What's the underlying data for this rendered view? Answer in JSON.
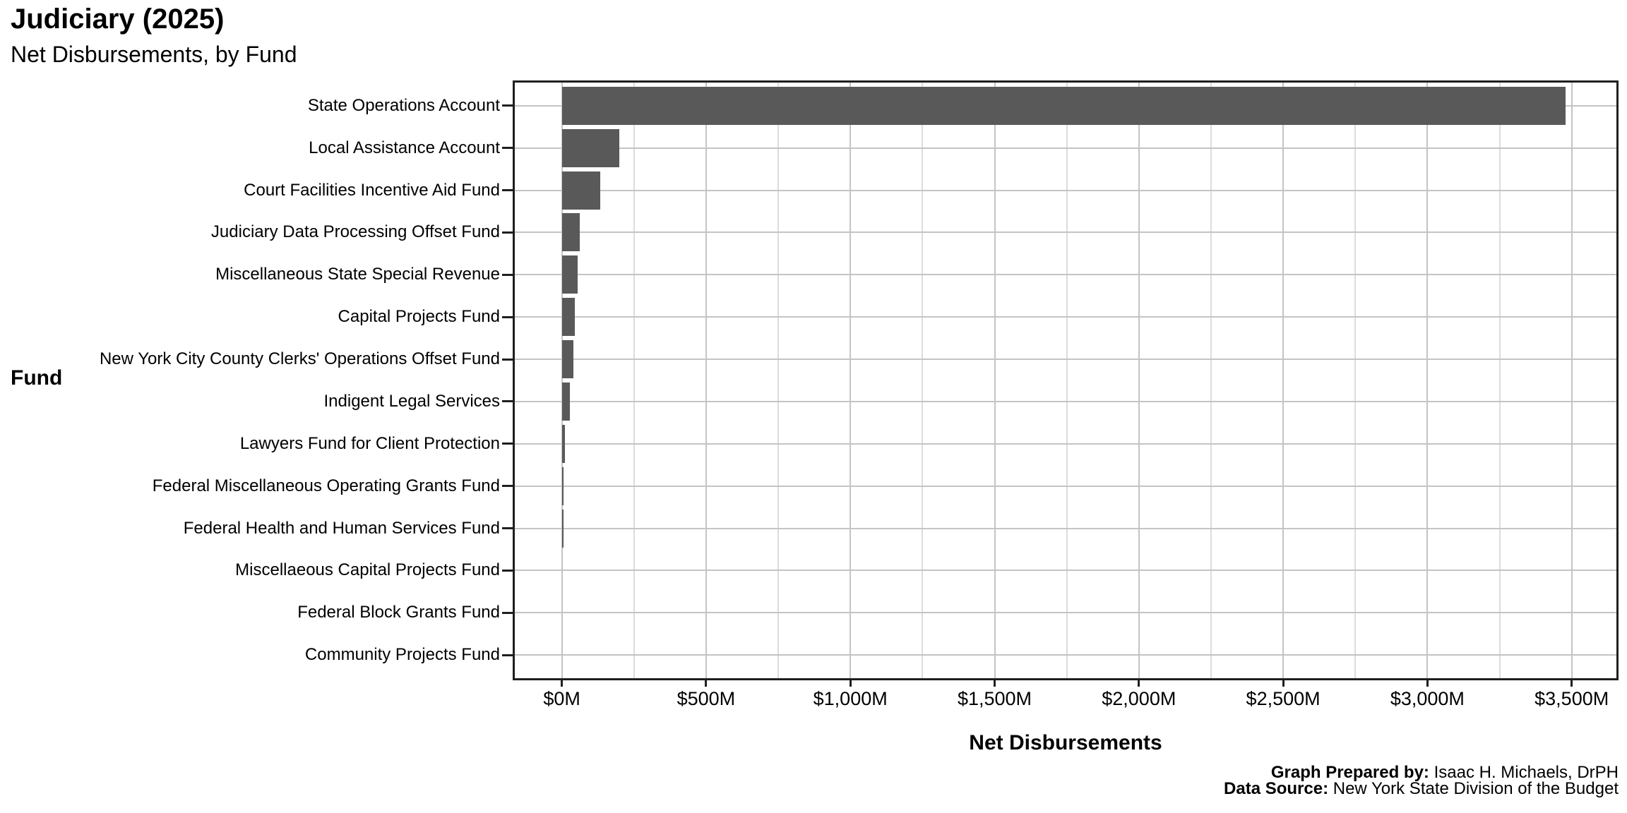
{
  "header": {
    "title": "Judiciary (2025)",
    "subtitle": "Net Disbursements, by Fund"
  },
  "caption": {
    "prepared_by_label": "Graph Prepared by:",
    "prepared_by_value": "Isaac H. Michaels, DrPH",
    "source_label": "Data Source:",
    "source_value": "New York State Division of the Budget"
  },
  "chart_data": {
    "type": "bar",
    "orientation": "horizontal",
    "title": "Judiciary (2025)",
    "subtitle": "Net Disbursements, by Fund",
    "xlabel": "Net Disbursements",
    "ylabel": "Fund",
    "unit": "USD millions",
    "xlim": [
      0,
      3500
    ],
    "x_tick_values": [
      0,
      500,
      1000,
      1500,
      2000,
      2500,
      3000,
      3500
    ],
    "x_tick_labels": [
      "$0M",
      "$500M",
      "$1,000M",
      "$1,500M",
      "$2,000M",
      "$2,500M",
      "$3,000M",
      "$3,500M"
    ],
    "x_minor_tick_values": [
      250,
      750,
      1250,
      1750,
      2250,
      2750,
      3250
    ],
    "grid": {
      "vertical_major": true,
      "vertical_minor": true,
      "horizontal_major": true
    },
    "legend": "none",
    "bar_color": "#595959",
    "categories": [
      "State Operations Account",
      "Local Assistance Account",
      "Court Facilities Incentive Aid Fund",
      "Judiciary Data Processing Offset Fund",
      "Miscellaneous State Special Revenue",
      "Capital Projects Fund",
      "New York City County Clerks' Operations Offset Fund",
      "Indigent Legal Services",
      "Lawyers Fund for Client Protection",
      "Federal Miscellaneous Operating Grants Fund",
      "Federal Health and Human Services Fund",
      "Miscellaeous Capital Projects Fund",
      "Federal Block Grants Fund",
      "Community Projects Fund"
    ],
    "values": [
      3478,
      200,
      132,
      63,
      56,
      46,
      41,
      29,
      12,
      7,
      6,
      0,
      0,
      0
    ]
  },
  "style": {
    "background": "#ffffff",
    "bar_color": "#595959",
    "panel_border_color": "#1f1f1f",
    "grid_major_color": "#c4c4c4",
    "grid_minor_color": "#dcdcdc",
    "text_color": "#000000"
  }
}
